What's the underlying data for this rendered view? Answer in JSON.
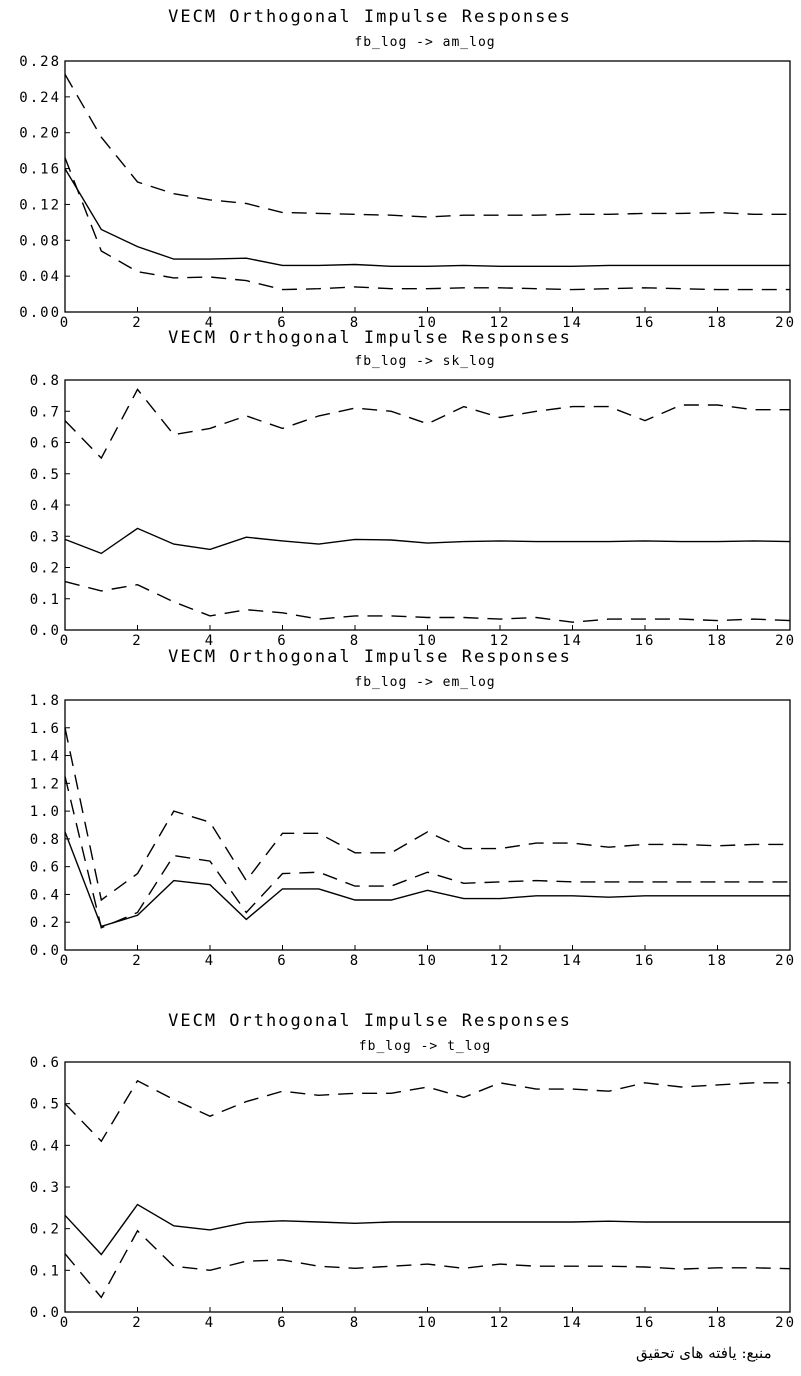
{
  "source_note": "منبع: یافته های تحقیق",
  "chart_data": [
    {
      "type": "line",
      "title": "VECM Orthogonal Impulse Responses",
      "subtitle": "fb_log -> am_log",
      "x": [
        0,
        1,
        2,
        3,
        4,
        5,
        6,
        7,
        8,
        9,
        10,
        11,
        12,
        13,
        14,
        15,
        16,
        17,
        18,
        19,
        20
      ],
      "xticks": [
        "0",
        "2",
        "4",
        "6",
        "8",
        "10",
        "12",
        "14",
        "16",
        "18",
        "20"
      ],
      "xlim": [
        0,
        20
      ],
      "ylim": [
        0.0,
        0.28
      ],
      "yticks": [
        "0.00",
        "0.04",
        "0.08",
        "0.12",
        "0.16",
        "0.20",
        "0.24",
        "0.28"
      ],
      "series": [
        {
          "style": "solid",
          "values": [
            0.16,
            0.092,
            0.073,
            0.059,
            0.059,
            0.06,
            0.052,
            0.052,
            0.053,
            0.051,
            0.051,
            0.052,
            0.051,
            0.051,
            0.051,
            0.052,
            0.052,
            0.052,
            0.052,
            0.052,
            0.052
          ]
        },
        {
          "style": "dashed",
          "values": [
            0.265,
            0.195,
            0.145,
            0.132,
            0.125,
            0.121,
            0.111,
            0.11,
            0.109,
            0.108,
            0.106,
            0.108,
            0.108,
            0.108,
            0.109,
            0.109,
            0.11,
            0.11,
            0.111,
            0.109,
            0.109
          ]
        },
        {
          "style": "dashed",
          "values": [
            0.172,
            0.068,
            0.045,
            0.038,
            0.039,
            0.035,
            0.025,
            0.026,
            0.028,
            0.026,
            0.026,
            0.027,
            0.027,
            0.026,
            0.025,
            0.026,
            0.027,
            0.026,
            0.025,
            0.025,
            0.025
          ]
        }
      ]
    },
    {
      "type": "line",
      "title": "VECM Orthogonal Impulse Responses",
      "subtitle": "fb_log -> sk_log",
      "x": [
        0,
        1,
        2,
        3,
        4,
        5,
        6,
        7,
        8,
        9,
        10,
        11,
        12,
        13,
        14,
        15,
        16,
        17,
        18,
        19,
        20
      ],
      "xticks": [
        "0",
        "2",
        "4",
        "6",
        "8",
        "10",
        "12",
        "14",
        "16",
        "18",
        "20"
      ],
      "xlim": [
        0,
        20
      ],
      "ylim": [
        0.0,
        0.8
      ],
      "yticks": [
        "0.0",
        "0.1",
        "0.2",
        "0.3",
        "0.4",
        "0.5",
        "0.6",
        "0.7",
        "0.8"
      ],
      "series": [
        {
          "style": "solid",
          "values": [
            0.29,
            0.245,
            0.325,
            0.275,
            0.258,
            0.297,
            0.285,
            0.275,
            0.29,
            0.288,
            0.278,
            0.283,
            0.285,
            0.283,
            0.283,
            0.283,
            0.285,
            0.283,
            0.283,
            0.285,
            0.283
          ]
        },
        {
          "style": "dashed",
          "values": [
            0.67,
            0.55,
            0.77,
            0.625,
            0.645,
            0.685,
            0.645,
            0.685,
            0.71,
            0.7,
            0.66,
            0.715,
            0.68,
            0.7,
            0.715,
            0.715,
            0.67,
            0.72,
            0.72,
            0.705,
            0.705
          ]
        },
        {
          "style": "dashed",
          "values": [
            0.155,
            0.125,
            0.145,
            0.09,
            0.045,
            0.065,
            0.055,
            0.035,
            0.045,
            0.045,
            0.04,
            0.04,
            0.035,
            0.04,
            0.025,
            0.035,
            0.035,
            0.035,
            0.03,
            0.035,
            0.03
          ]
        }
      ]
    },
    {
      "type": "line",
      "title": "VECM Orthogonal Impulse Responses",
      "subtitle": "fb_log -> em_log",
      "x": [
        0,
        1,
        2,
        3,
        4,
        5,
        6,
        7,
        8,
        9,
        10,
        11,
        12,
        13,
        14,
        15,
        16,
        17,
        18,
        19,
        20
      ],
      "xticks": [
        "0",
        "2",
        "4",
        "6",
        "8",
        "10",
        "12",
        "14",
        "16",
        "18",
        "20"
      ],
      "xlim": [
        0,
        20
      ],
      "ylim": [
        0.0,
        1.8
      ],
      "yticks": [
        "0.0",
        "0.2",
        "0.4",
        "0.6",
        "0.8",
        "1.0",
        "1.2",
        "1.4",
        "1.6",
        "1.8"
      ],
      "series": [
        {
          "style": "solid",
          "values": [
            0.85,
            0.17,
            0.25,
            0.5,
            0.47,
            0.22,
            0.44,
            0.44,
            0.36,
            0.36,
            0.43,
            0.37,
            0.37,
            0.39,
            0.39,
            0.38,
            0.39,
            0.39,
            0.39,
            0.39,
            0.39
          ]
        },
        {
          "style": "dashed",
          "values": [
            1.6,
            0.36,
            0.55,
            1.0,
            0.92,
            0.5,
            0.84,
            0.84,
            0.7,
            0.7,
            0.85,
            0.73,
            0.73,
            0.77,
            0.77,
            0.74,
            0.76,
            0.76,
            0.75,
            0.76,
            0.76
          ]
        },
        {
          "style": "dashed",
          "values": [
            1.25,
            0.16,
            0.27,
            0.68,
            0.64,
            0.27,
            0.55,
            0.56,
            0.46,
            0.46,
            0.56,
            0.48,
            0.49,
            0.5,
            0.49,
            0.49,
            0.49,
            0.49,
            0.49,
            0.49,
            0.49
          ]
        }
      ]
    },
    {
      "type": "line",
      "title": "VECM Orthogonal Impulse Responses",
      "subtitle": "fb_log -> t_log",
      "x": [
        0,
        1,
        2,
        3,
        4,
        5,
        6,
        7,
        8,
        9,
        10,
        11,
        12,
        13,
        14,
        15,
        16,
        17,
        18,
        19,
        20
      ],
      "xticks": [
        "0",
        "2",
        "4",
        "6",
        "8",
        "10",
        "12",
        "14",
        "16",
        "18",
        "20"
      ],
      "xlim": [
        0,
        20
      ],
      "ylim": [
        0.0,
        0.6
      ],
      "yticks": [
        "0.0",
        "0.1",
        "0.2",
        "0.3",
        "0.4",
        "0.5",
        "0.6"
      ],
      "series": [
        {
          "style": "solid",
          "values": [
            0.232,
            0.138,
            0.258,
            0.207,
            0.197,
            0.215,
            0.219,
            0.216,
            0.213,
            0.216,
            0.216,
            0.216,
            0.216,
            0.216,
            0.216,
            0.218,
            0.216,
            0.216,
            0.216,
            0.216,
            0.216
          ]
        },
        {
          "style": "dashed",
          "values": [
            0.5,
            0.41,
            0.555,
            0.51,
            0.47,
            0.505,
            0.53,
            0.52,
            0.525,
            0.525,
            0.54,
            0.515,
            0.55,
            0.535,
            0.535,
            0.53,
            0.55,
            0.54,
            0.545,
            0.55,
            0.55
          ]
        },
        {
          "style": "dashed",
          "values": [
            0.14,
            0.035,
            0.195,
            0.11,
            0.1,
            0.122,
            0.125,
            0.11,
            0.105,
            0.11,
            0.115,
            0.105,
            0.115,
            0.11,
            0.11,
            0.11,
            0.108,
            0.103,
            0.106,
            0.106,
            0.104
          ]
        }
      ]
    }
  ]
}
